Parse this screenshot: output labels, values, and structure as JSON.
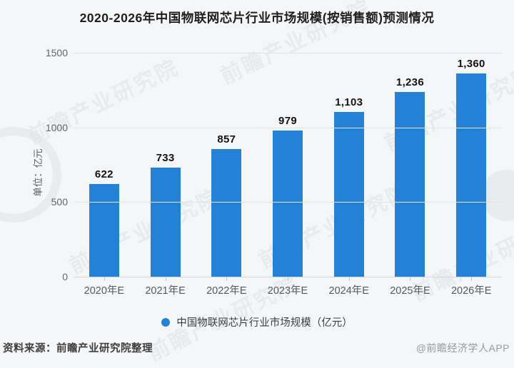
{
  "title": "2020-2026年中国物联网芯片行业市场规模(按销售额)预测情况",
  "y_axis": {
    "unit_label": "单位：亿元",
    "ticks": [
      "1500",
      "1000",
      "500",
      "0"
    ],
    "max": 1500
  },
  "chart_data": {
    "type": "bar",
    "categories": [
      "2020年E",
      "2021年E",
      "2022年E",
      "2023年E",
      "2024年E",
      "2025年E",
      "2026年E"
    ],
    "values": [
      622,
      733,
      857,
      979,
      1103,
      1236,
      1360
    ],
    "value_labels": [
      "622",
      "733",
      "857",
      "979",
      "1,103",
      "1,236",
      "1,360"
    ],
    "title": "2020-2026年中国物联网芯片行业市场规模(按销售额)预测情况",
    "xlabel": "",
    "ylabel": "单位：亿元",
    "ylim": [
      0,
      1500
    ],
    "y_tick_step": 500,
    "grid": true,
    "bar_color": "#2581d6",
    "legend_position": "bottom",
    "series_name": "中国物联网芯片行业市场规模（亿元）"
  },
  "legend": {
    "label": "中国物联网芯片行业市场规模（亿元）",
    "marker_color": "#2581d6"
  },
  "footer": {
    "source": "资料来源：前瞻产业研究院整理",
    "credit": "@前瞻经济学人APP"
  },
  "watermark": {
    "text": "前瞻产业研究院"
  },
  "colors": {
    "background": "#f5f6f7",
    "bar": "#2581d6",
    "gridline": "#e1e2e4",
    "title_text": "#1e1e1e",
    "axis_text": "#63666b"
  }
}
